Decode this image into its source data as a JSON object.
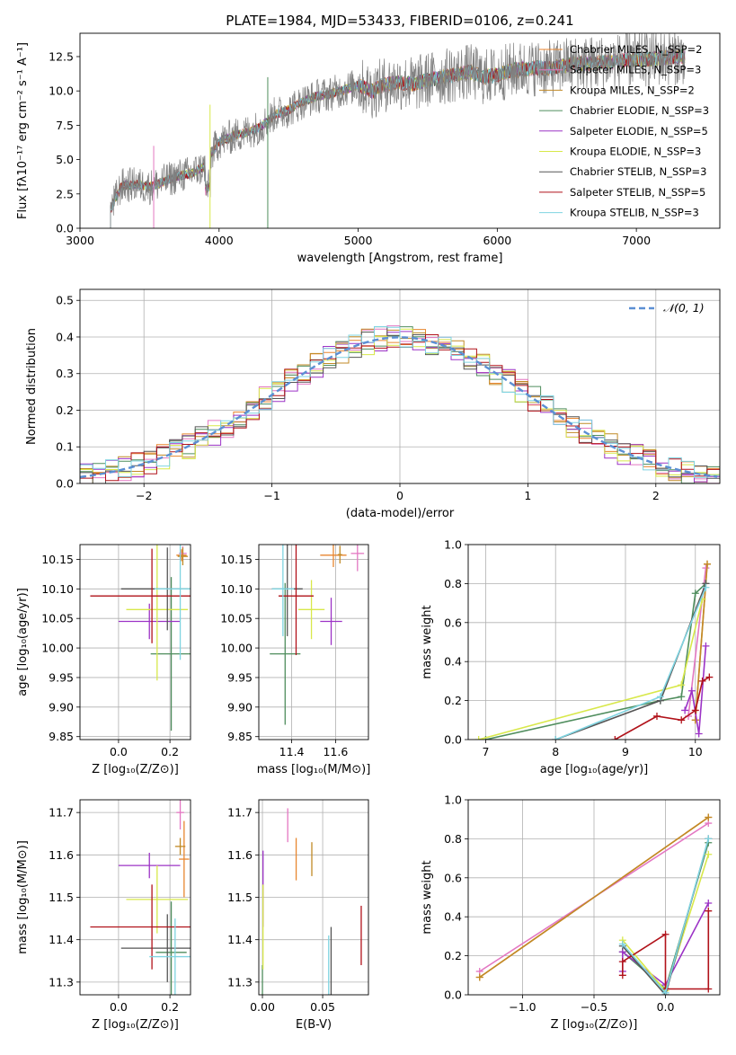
{
  "colors": [
    "#e8862f",
    "#e377c2",
    "#c08a26",
    "#4f8d5d",
    "#9c33c6",
    "#d8e84a",
    "#555555",
    "#b1121a",
    "#7fd4e1"
  ],
  "ref_color": "#5b8fd3",
  "chart_data": [
    {
      "id": "spectrum",
      "type": "line",
      "title": "PLATE=1984, MJD=53433, FIBERID=0106, z=0.241",
      "xlabel": "wavelength [Angstrom, rest frame]",
      "ylabel": "Flux [fλ10⁻¹⁷ erg cm⁻² s⁻¹ A⁻¹]",
      "xlim": [
        3000,
        7600
      ],
      "ylim": [
        0,
        14.2
      ],
      "xticks": [
        "3000",
        "4000",
        "5000",
        "6000",
        "7000"
      ],
      "yticks": [
        "0.0",
        "2.5",
        "5.0",
        "7.5",
        "10.0",
        "12.5"
      ],
      "grid": false,
      "legend_position": "right",
      "legend": [
        "Chabrier MILES, N_SSP=2",
        "Salpeter MILES, N_SSP=3",
        "Kroupa MILES, N_SSP=2",
        "Chabrier ELODIE, N_SSP=3",
        "Salpeter ELODIE, N_SSP=5",
        "Kroupa ELODIE, N_SSP=3",
        "Chabrier STELIB, N_SSP=3",
        "Salpeter STELIB, N_SSP=5",
        "Kroupa STELIB, N_SSP=3"
      ],
      "data_color": "#808080",
      "x": [
        3220,
        3300,
        3400,
        3500,
        3600,
        3700,
        3800,
        3900,
        3950,
        4000,
        4100,
        4200,
        4300,
        4400,
        4500,
        4600,
        4700,
        4800,
        4900,
        5000,
        5100,
        5200,
        5300,
        5400,
        5500,
        5600,
        5700,
        5800,
        5900,
        6000,
        6100,
        6200,
        6300,
        6400,
        6500,
        6600,
        6700,
        6800,
        6900,
        7000,
        7100,
        7200,
        7300,
        7350
      ],
      "y": [
        1.4,
        3.1,
        3.2,
        3.0,
        3.4,
        3.8,
        4.0,
        4.5,
        5.5,
        6.3,
        6.7,
        7.0,
        7.4,
        8.3,
        8.6,
        9.2,
        9.6,
        9.8,
        10.1,
        10.4,
        10.0,
        10.5,
        10.6,
        10.5,
        10.8,
        11.0,
        11.2,
        11.4,
        11.0,
        11.2,
        11.5,
        11.6,
        11.7,
        11.6,
        11.9,
        12.0,
        12.0,
        12.1,
        12.2,
        12.3,
        12.3,
        12.4,
        12.5,
        12.5
      ]
    },
    {
      "id": "residuals",
      "type": "histogram",
      "xlabel": "(data-model)/error",
      "ylabel": "Normed distribution",
      "xlim": [
        -2.5,
        2.5
      ],
      "ylim": [
        0,
        0.53
      ],
      "xticks": [
        "−2",
        "−1",
        "0",
        "1",
        "2"
      ],
      "yticks": [
        "0.0",
        "0.1",
        "0.2",
        "0.3",
        "0.4",
        "0.5"
      ],
      "grid": true,
      "legend_position": "upper right",
      "legend": [
        "𝒩(0, 1)"
      ],
      "bin_width": 0.1
    },
    {
      "id": "age-vs-Z",
      "type": "scatter",
      "xlabel": "Z [log₁₀(Z/Z⊙)]",
      "ylabel": "age  [log₁₀(age/yr)]",
      "xlim": [
        -0.15,
        0.28
      ],
      "ylim": [
        9.845,
        10.175
      ],
      "xticks": [
        "0.0",
        "0.2"
      ],
      "yticks": [
        "9.85",
        "9.90",
        "9.95",
        "10.00",
        "10.05",
        "10.10",
        "10.15"
      ],
      "grid": true,
      "points": [
        {
          "x": 0.245,
          "y": 10.157,
          "xerr": 0.02,
          "yerr": 0.01
        },
        {
          "x": 0.25,
          "y": 10.16,
          "xerr": 0.015,
          "yerr": 0.012
        },
        {
          "x": 0.25,
          "y": 10.155,
          "xerr": 0.02,
          "yerr": 0.015
        },
        {
          "x": 0.205,
          "y": 9.99,
          "xerr": 0.08,
          "yerr": 0.13
        },
        {
          "x": 0.12,
          "y": 10.045,
          "xerr": 0.12,
          "yerr": 0.03
        },
        {
          "x": 0.15,
          "y": 10.065,
          "xerr": 0.12,
          "yerr": 0.12
        },
        {
          "x": 0.19,
          "y": 10.1,
          "xerr": 0.18,
          "yerr": 0.07
        },
        {
          "x": 0.13,
          "y": 10.088,
          "xerr": 0.24,
          "yerr": 0.08
        },
        {
          "x": 0.24,
          "y": 10.1,
          "xerr": 0.1,
          "yerr": 0.12
        }
      ]
    },
    {
      "id": "age-vs-mass",
      "type": "scatter",
      "xlabel": "mass [log₁₀(M/M⊙)]",
      "ylabel": "",
      "xlim": [
        11.25,
        11.75
      ],
      "ylim": [
        9.845,
        10.175
      ],
      "xticks": [
        "11.4",
        "11.6"
      ],
      "yticks": [
        "9.85",
        "9.90",
        "9.95",
        "10.00",
        "10.05",
        "10.10",
        "10.15"
      ],
      "grid": true,
      "points": [
        {
          "x": 11.59,
          "y": 10.157,
          "xerr": 0.06,
          "yerr": 0.02
        },
        {
          "x": 11.7,
          "y": 10.16,
          "xerr": 0.03,
          "yerr": 0.03
        },
        {
          "x": 11.62,
          "y": 10.158,
          "xerr": 0.01,
          "yerr": 0.015
        },
        {
          "x": 11.37,
          "y": 9.99,
          "xerr": 0.07,
          "yerr": 0.12
        },
        {
          "x": 11.58,
          "y": 10.045,
          "xerr": 0.05,
          "yerr": 0.04
        },
        {
          "x": 11.49,
          "y": 10.065,
          "xerr": 0.06,
          "yerr": 0.05
        },
        {
          "x": 11.38,
          "y": 10.1,
          "xerr": 0.07,
          "yerr": 0.08
        },
        {
          "x": 11.42,
          "y": 10.088,
          "xerr": 0.08,
          "yerr": 0.1
        },
        {
          "x": 11.36,
          "y": 10.1,
          "xerr": 0.05,
          "yerr": 0.08
        }
      ]
    },
    {
      "id": "weight-vs-age",
      "type": "line",
      "xlabel": "age  [log₁₀(age/yr)]",
      "ylabel": "mass weight",
      "xlim": [
        6.75,
        10.35
      ],
      "ylim": [
        0,
        1.0
      ],
      "xticks": [
        "7",
        "8",
        "9",
        "10"
      ],
      "yticks": [
        "0.0",
        "0.2",
        "0.4",
        "0.6",
        "0.8",
        "1.0"
      ],
      "grid": true,
      "series": [
        {
          "x": [
            10.0,
            10.17
          ],
          "y": [
            0.1,
            0.9
          ]
        },
        {
          "x": [
            9.9,
            10.15
          ],
          "y": [
            0.12,
            0.88
          ]
        },
        {
          "x": [
            10.0,
            10.17
          ],
          "y": [
            0.1,
            0.9
          ]
        },
        {
          "x": [
            7.0,
            9.5,
            9.8,
            10.0,
            10.15
          ],
          "y": [
            0.0,
            0.2,
            0.22,
            0.75,
            0.8
          ]
        },
        {
          "x": [
            9.85,
            9.95,
            10.05,
            10.15
          ],
          "y": [
            0.15,
            0.25,
            0.03,
            0.48
          ]
        },
        {
          "x": [
            6.9,
            9.8,
            10.1
          ],
          "y": [
            0.0,
            0.28,
            0.72
          ]
        },
        {
          "x": [
            8.0,
            9.5,
            10.15
          ],
          "y": [
            0.0,
            0.2,
            0.8
          ]
        },
        {
          "x": [
            8.85,
            9.45,
            9.8,
            10.0,
            10.1,
            10.2
          ],
          "y": [
            0.0,
            0.12,
            0.1,
            0.15,
            0.3,
            0.32
          ]
        },
        {
          "x": [
            8.0,
            9.5,
            10.15
          ],
          "y": [
            0.0,
            0.22,
            0.78
          ]
        }
      ]
    },
    {
      "id": "mass-vs-Z",
      "type": "scatter",
      "xlabel": "Z [log₁₀(Z/Z⊙)]",
      "ylabel": "mass [log₁₀(M/M⊙)]",
      "xlim": [
        -0.15,
        0.28
      ],
      "ylim": [
        11.27,
        11.73
      ],
      "xticks": [
        "0.0",
        "0.2"
      ],
      "yticks": [
        "11.3",
        "11.4",
        "11.5",
        "11.6",
        "11.7"
      ],
      "grid": true,
      "points": [
        {
          "x": 0.255,
          "y": 11.59,
          "xerr": 0.02,
          "yerr": 0.09
        },
        {
          "x": 0.24,
          "y": 11.7,
          "xerr": 0.015,
          "yerr": 0.04
        },
        {
          "x": 0.24,
          "y": 11.62,
          "xerr": 0.02,
          "yerr": 0.02
        },
        {
          "x": 0.205,
          "y": 11.37,
          "xerr": 0.06,
          "yerr": 0.12
        },
        {
          "x": 0.12,
          "y": 11.575,
          "xerr": 0.12,
          "yerr": 0.03
        },
        {
          "x": 0.15,
          "y": 11.495,
          "xerr": 0.12,
          "yerr": 0.08
        },
        {
          "x": 0.19,
          "y": 11.38,
          "xerr": 0.18,
          "yerr": 0.08
        },
        {
          "x": 0.13,
          "y": 11.43,
          "xerr": 0.24,
          "yerr": 0.1
        },
        {
          "x": 0.22,
          "y": 11.36,
          "xerr": 0.1,
          "yerr": 0.09
        }
      ]
    },
    {
      "id": "mass-vs-EBV",
      "type": "scatter",
      "xlabel": "E(B-V)",
      "ylabel": "",
      "xlim": [
        -0.003,
        0.088
      ],
      "ylim": [
        11.27,
        11.73
      ],
      "xticks": [
        "0.00",
        "0.05"
      ],
      "yticks": [
        "11.3",
        "11.4",
        "11.5",
        "11.6",
        "11.7"
      ],
      "grid": true,
      "points": [
        {
          "x": 0.028,
          "y": 11.59,
          "xerr": 0,
          "yerr": 0.05
        },
        {
          "x": 0.021,
          "y": 11.67,
          "xerr": 0,
          "yerr": 0.04
        },
        {
          "x": 0.041,
          "y": 11.59,
          "xerr": 0,
          "yerr": 0.04
        },
        {
          "x": 0.0,
          "y": 11.3,
          "xerr": 0,
          "yerr": 0.04
        },
        {
          "x": 0.0005,
          "y": 11.52,
          "xerr": 0,
          "yerr": 0.09
        },
        {
          "x": 0.0005,
          "y": 11.43,
          "xerr": 0,
          "yerr": 0.1
        },
        {
          "x": 0.057,
          "y": 11.33,
          "xerr": 0,
          "yerr": 0.1
        },
        {
          "x": 0.082,
          "y": 11.41,
          "xerr": 0,
          "yerr": 0.07
        },
        {
          "x": 0.055,
          "y": 11.33,
          "xerr": 0,
          "yerr": 0.08
        }
      ]
    },
    {
      "id": "weight-vs-Z",
      "type": "line",
      "xlabel": "Z [log₁₀(Z/Z⊙)]",
      "ylabel": "mass weight",
      "xlim": [
        -1.38,
        0.38
      ],
      "ylim": [
        0,
        1.0
      ],
      "xticks": [
        "−1.0",
        "−0.5",
        "0.0"
      ],
      "yticks": [
        "0.0",
        "0.2",
        "0.4",
        "0.6",
        "0.8",
        "1.0"
      ],
      "grid": true,
      "series": [
        {
          "x": [
            -1.3,
            0.3
          ],
          "y": [
            0.09,
            0.91
          ]
        },
        {
          "x": [
            -1.3,
            0.3
          ],
          "y": [
            0.12,
            0.88
          ]
        },
        {
          "x": [
            -1.3,
            0.3
          ],
          "y": [
            0.09,
            0.91
          ]
        },
        {
          "x": [
            -0.3,
            0.0,
            0.3
          ],
          "y": [
            0.22,
            0.03,
            0.78
          ]
        },
        {
          "x": [
            -0.3,
            -0.3,
            0.0,
            0.3
          ],
          "y": [
            0.12,
            0.22,
            0.05,
            0.47
          ]
        },
        {
          "x": [
            -0.3,
            0.0,
            0.3
          ],
          "y": [
            0.28,
            0.02,
            0.72
          ]
        },
        {
          "x": [
            -0.3,
            0.0,
            0.3
          ],
          "y": [
            0.25,
            0.0,
            0.8
          ]
        },
        {
          "x": [
            -0.3,
            -0.3,
            0.0,
            0.0,
            0.3,
            0.3
          ],
          "y": [
            0.1,
            0.17,
            0.31,
            0.03,
            0.03,
            0.43
          ]
        },
        {
          "x": [
            -0.3,
            0.0,
            0.3
          ],
          "y": [
            0.26,
            0.01,
            0.8
          ]
        }
      ]
    }
  ]
}
